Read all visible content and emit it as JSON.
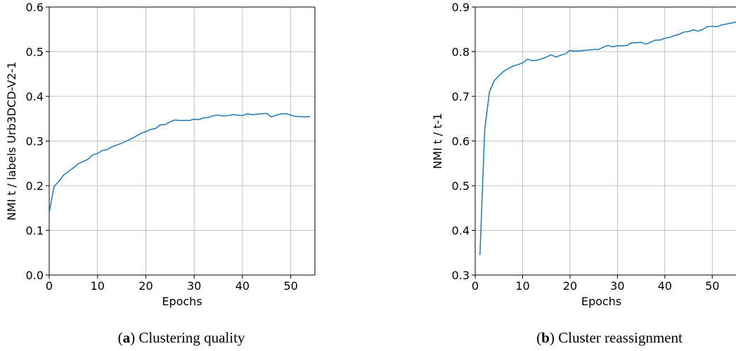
{
  "chart_data": [
    {
      "type": "line",
      "xlabel": "Epochs",
      "ylabel": "NMI t / labels Urb3DCD-V2-1",
      "xlim": [
        0,
        55
      ],
      "ylim": [
        0.0,
        0.6
      ],
      "xticks": [
        0,
        10,
        20,
        30,
        40,
        50
      ],
      "yticks": [
        0.0,
        0.1,
        0.2,
        0.3,
        0.4,
        0.5,
        0.6
      ],
      "xtick_labels": [
        "0",
        "10",
        "20",
        "30",
        "40",
        "50"
      ],
      "ytick_labels": [
        "0.0",
        "0.1",
        "0.2",
        "0.3",
        "0.4",
        "0.5",
        "0.6"
      ],
      "grid": true,
      "color": "#1f77b4",
      "caption_tag": "a",
      "caption_text": "Clustering quality",
      "series": [
        {
          "x": [
            0,
            1,
            2,
            3,
            4,
            5,
            6,
            7,
            8,
            9,
            10,
            11,
            12,
            13,
            14,
            15,
            16,
            17,
            18,
            19,
            20,
            21,
            22,
            23,
            24,
            25,
            26,
            27,
            28,
            29,
            30,
            31,
            32,
            33,
            34,
            35,
            36,
            37,
            38,
            39,
            40,
            41,
            42,
            43,
            44,
            45,
            46,
            47,
            48,
            49,
            50,
            51,
            52,
            53,
            54
          ],
          "values": [
            0.14,
            0.198,
            0.21,
            0.224,
            0.232,
            0.24,
            0.249,
            0.254,
            0.259,
            0.269,
            0.272,
            0.279,
            0.281,
            0.287,
            0.291,
            0.295,
            0.3,
            0.305,
            0.311,
            0.317,
            0.321,
            0.326,
            0.328,
            0.336,
            0.337,
            0.343,
            0.347,
            0.346,
            0.346,
            0.346,
            0.349,
            0.348,
            0.352,
            0.353,
            0.357,
            0.358,
            0.356,
            0.357,
            0.359,
            0.358,
            0.357,
            0.361,
            0.359,
            0.36,
            0.361,
            0.362,
            0.354,
            0.358,
            0.361,
            0.361,
            0.358,
            0.355,
            0.355,
            0.354,
            0.355
          ]
        }
      ]
    },
    {
      "type": "line",
      "xlabel": "Epochs",
      "ylabel": "NMI t / t-1",
      "xlim": [
        0,
        55
      ],
      "ylim": [
        0.3,
        0.9
      ],
      "xticks": [
        0,
        10,
        20,
        30,
        40,
        50
      ],
      "yticks": [
        0.3,
        0.4,
        0.5,
        0.6,
        0.7,
        0.8,
        0.9
      ],
      "xtick_labels": [
        "0",
        "10",
        "20",
        "30",
        "40",
        "50"
      ],
      "ytick_labels": [
        "0.3",
        "0.4",
        "0.5",
        "0.6",
        "0.7",
        "0.8",
        "0.9"
      ],
      "grid": true,
      "color": "#1f77b4",
      "caption_tag": "b",
      "caption_text": "Cluster reassignment",
      "series": [
        {
          "x": [
            1,
            2,
            3,
            4,
            5,
            6,
            7,
            8,
            9,
            10,
            11,
            12,
            13,
            14,
            15,
            16,
            17,
            18,
            19,
            20,
            21,
            22,
            23,
            24,
            25,
            26,
            27,
            28,
            29,
            30,
            31,
            32,
            33,
            34,
            35,
            36,
            37,
            38,
            39,
            40,
            41,
            42,
            43,
            44,
            45,
            46,
            47,
            48,
            49,
            50,
            51,
            52,
            53,
            54,
            55
          ],
          "values": [
            0.345,
            0.625,
            0.71,
            0.735,
            0.746,
            0.756,
            0.762,
            0.768,
            0.771,
            0.775,
            0.783,
            0.78,
            0.781,
            0.784,
            0.788,
            0.793,
            0.788,
            0.792,
            0.795,
            0.803,
            0.801,
            0.802,
            0.803,
            0.804,
            0.805,
            0.805,
            0.81,
            0.814,
            0.811,
            0.813,
            0.813,
            0.814,
            0.82,
            0.82,
            0.821,
            0.817,
            0.821,
            0.826,
            0.826,
            0.83,
            0.832,
            0.836,
            0.839,
            0.844,
            0.845,
            0.849,
            0.846,
            0.85,
            0.856,
            0.857,
            0.856,
            0.86,
            0.862,
            0.864,
            0.867
          ]
        }
      ]
    }
  ]
}
